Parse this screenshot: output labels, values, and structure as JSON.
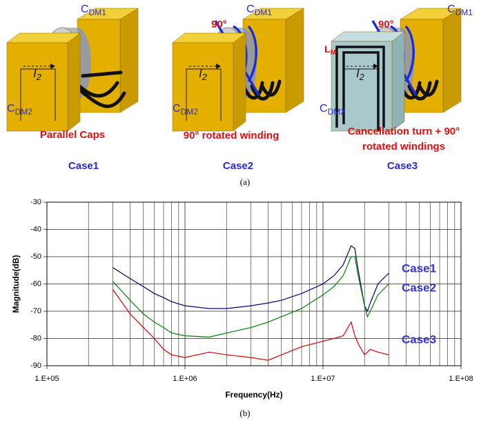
{
  "panel_a": {
    "cases": [
      {
        "cap1": {
          "base": "C",
          "sub": "DM1"
        },
        "cap2": {
          "base": "C",
          "sub": "DM2"
        },
        "current": {
          "base": "I",
          "sub": "2"
        },
        "caption": [
          "Parallel Caps"
        ],
        "name": "Case1"
      },
      {
        "cap1": {
          "base": "C",
          "sub": "DM1"
        },
        "cap2": {
          "base": "C",
          "sub": "DM2"
        },
        "current": {
          "base": "I",
          "sub": "2"
        },
        "angle": "90°",
        "caption": [
          "90°  rotated winding"
        ],
        "name": "Case2"
      },
      {
        "cap1": {
          "base": "C",
          "sub": "DM1"
        },
        "cap2": {
          "base": "C",
          "sub": "DM2"
        },
        "current": {
          "base": "I",
          "sub": "2"
        },
        "angle": "90°",
        "inductance": {
          "base": "L",
          "sub": "M"
        },
        "caption": [
          "Cancellation turn + 90°",
          "rotated windings"
        ],
        "name": "Case3"
      }
    ],
    "label": "(a)"
  },
  "chart_data": {
    "type": "line",
    "x_label": "Frequency(Hz)",
    "y_label": "Magnitude(dB)",
    "panel_label": "(b)",
    "log_x": true,
    "grid": true,
    "xlim": [
      100000,
      100000000
    ],
    "xticks": [
      {
        "value": 100000,
        "label": "1.E+05"
      },
      {
        "value": 1000000,
        "label": "1.E+06"
      },
      {
        "value": 10000000,
        "label": "1.E+07"
      },
      {
        "value": 100000000,
        "label": "1.E+08"
      }
    ],
    "xminorticks": [
      200000,
      300000,
      400000,
      500000,
      600000,
      700000,
      800000,
      900000,
      2000000,
      3000000,
      4000000,
      5000000,
      6000000,
      7000000,
      8000000,
      9000000,
      20000000,
      30000000,
      40000000,
      50000000,
      60000000,
      70000000,
      80000000,
      90000000
    ],
    "ylim": [
      -90,
      -30
    ],
    "yticks": [
      -90,
      -80,
      -70,
      -60,
      -50,
      -40,
      -30
    ],
    "label_color": "#3535d8",
    "x": [
      300000,
      400000,
      500000,
      600000,
      700000,
      800000,
      1000000,
      1500000,
      2000000,
      3000000,
      4000000,
      5000000,
      7000000,
      10000000,
      12000000,
      14000000,
      16000000,
      17000000,
      18000000,
      20000000,
      21000000,
      22000000,
      25000000,
      30000000
    ],
    "series": [
      {
        "name": "Case1",
        "color": "#000080",
        "values": [
          -54,
          -58,
          -61,
          -63.5,
          -65,
          -66.5,
          -68,
          -69,
          -69,
          -68,
          -67,
          -66,
          -63.5,
          -60,
          -57,
          -53,
          -46,
          -47,
          -55,
          -68,
          -70,
          -67,
          -60,
          -56
        ]
      },
      {
        "name": "Case2",
        "color": "#008000",
        "values": [
          -59,
          -66,
          -71,
          -74,
          -76,
          -78,
          -79,
          -79.5,
          -78,
          -76,
          -74,
          -72,
          -69,
          -64,
          -61,
          -57,
          -50,
          -50,
          -57,
          -68,
          -72,
          -70,
          -64,
          -60
        ]
      },
      {
        "name": "Case3",
        "color": "#e00000",
        "values": [
          -62,
          -71,
          -76,
          -80,
          -84,
          -86,
          -87,
          -85,
          -86,
          -87,
          -88,
          -86,
          -83,
          -81,
          -80,
          -79,
          -74,
          -79,
          -82,
          -86,
          -85,
          -84,
          -85,
          -86
        ]
      }
    ]
  }
}
